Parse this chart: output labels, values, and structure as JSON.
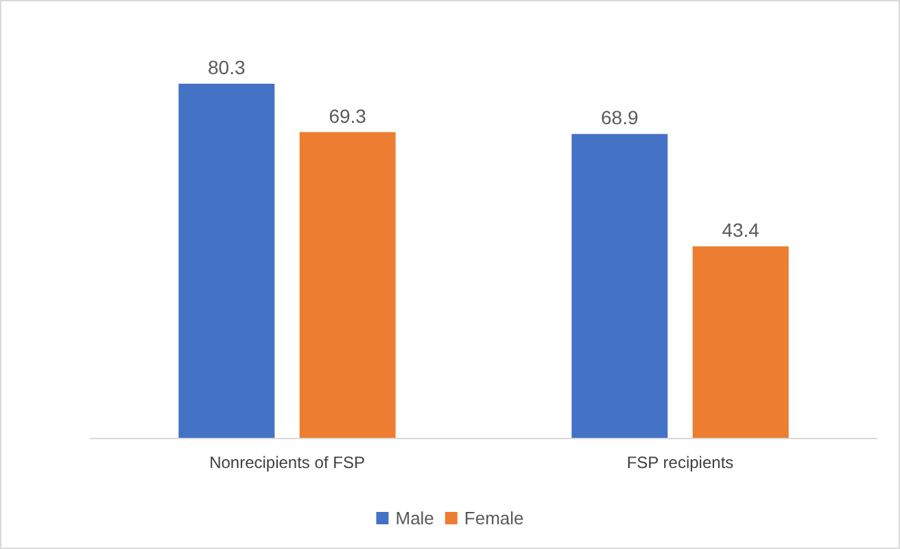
{
  "chart_data": {
    "type": "bar",
    "categories": [
      "Nonrecipients of FSP",
      "FSP recipients"
    ],
    "series": [
      {
        "name": "Male",
        "color": "#4472c4",
        "values": [
          80.3,
          68.9
        ]
      },
      {
        "name": "Female",
        "color": "#ed7d31",
        "values": [
          69.3,
          43.4
        ]
      }
    ],
    "data_labels": true,
    "legend": "bottom"
  }
}
